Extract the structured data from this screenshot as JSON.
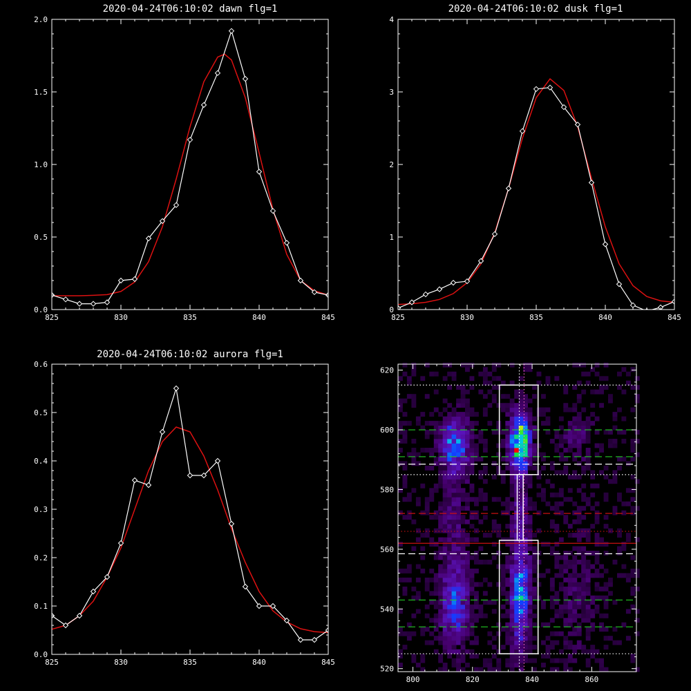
{
  "colors": {
    "background": "#000000",
    "data_line": "#ffffff",
    "fit_line": "#dd1111",
    "marker": "#ffffff"
  },
  "chart_data": [
    {
      "id": "dawn",
      "type": "line",
      "title": "2020-04-24T06:10:02 dawn flg=1",
      "xlim": [
        825,
        845
      ],
      "ylim": [
        0,
        2.0
      ],
      "xticks": [
        "825",
        "830",
        "835",
        "840",
        "845"
      ],
      "yticks": [
        "0.0",
        "0.5",
        "1.0",
        "1.5",
        "2.0"
      ],
      "series": [
        {
          "role": "data",
          "x": [
            825,
            826,
            827,
            828,
            829,
            830,
            831,
            832,
            833,
            834,
            835,
            836,
            837,
            838,
            839,
            840,
            841,
            842,
            843,
            844,
            845
          ],
          "y": [
            0.1,
            0.07,
            0.04,
            0.04,
            0.05,
            0.2,
            0.21,
            0.49,
            0.61,
            0.72,
            1.17,
            1.41,
            1.63,
            1.92,
            1.59,
            0.95,
            0.68,
            0.46,
            0.2,
            0.12,
            0.1
          ]
        },
        {
          "role": "fit",
          "x": [
            825,
            826,
            827,
            828,
            829,
            830,
            831,
            832,
            833,
            834,
            835,
            836,
            837,
            837.5,
            838,
            839,
            840,
            841,
            842,
            843,
            844,
            845
          ],
          "y": [
            0.095,
            0.095,
            0.095,
            0.098,
            0.103,
            0.125,
            0.19,
            0.33,
            0.57,
            0.9,
            1.26,
            1.57,
            1.74,
            1.76,
            1.72,
            1.46,
            1.08,
            0.69,
            0.38,
            0.2,
            0.13,
            0.1
          ]
        }
      ]
    },
    {
      "id": "dusk",
      "type": "line",
      "title": "2020-04-24T06:10:02 dusk flg=1",
      "xlim": [
        825,
        845
      ],
      "ylim": [
        0,
        4
      ],
      "xticks": [
        "825",
        "830",
        "835",
        "840",
        "845"
      ],
      "yticks": [
        "0",
        "1",
        "2",
        "3",
        "4"
      ],
      "series": [
        {
          "role": "data",
          "x": [
            825,
            826,
            827,
            828,
            829,
            830,
            831,
            832,
            833,
            834,
            835,
            836,
            837,
            838,
            839,
            840,
            841,
            842,
            843,
            844,
            845
          ],
          "y": [
            0.02,
            0.1,
            0.21,
            0.28,
            0.37,
            0.39,
            0.67,
            1.04,
            1.67,
            2.46,
            3.04,
            3.06,
            2.79,
            2.55,
            1.75,
            0.9,
            0.35,
            0.06,
            -0.02,
            0.03,
            0.11
          ]
        },
        {
          "role": "fit",
          "x": [
            825,
            826,
            827,
            828,
            829,
            830,
            831,
            832,
            833,
            834,
            835,
            836,
            837,
            838,
            839,
            840,
            841,
            842,
            843,
            844,
            845
          ],
          "y": [
            0.07,
            0.08,
            0.1,
            0.14,
            0.22,
            0.37,
            0.63,
            1.06,
            1.67,
            2.36,
            2.92,
            3.18,
            3.02,
            2.52,
            1.81,
            1.14,
            0.63,
            0.33,
            0.18,
            0.12,
            0.1
          ]
        }
      ]
    },
    {
      "id": "aurora",
      "type": "line",
      "title": "2020-04-24T06:10:02 aurora flg=1",
      "xlim": [
        825,
        845
      ],
      "ylim": [
        0,
        0.6
      ],
      "xticks": [
        "825",
        "830",
        "835",
        "840",
        "845"
      ],
      "yticks": [
        "0.0",
        "0.1",
        "0.2",
        "0.3",
        "0.4",
        "0.5",
        "0.6"
      ],
      "series": [
        {
          "role": "data",
          "x": [
            825,
            826,
            827,
            828,
            829,
            830,
            831,
            832,
            833,
            834,
            835,
            836,
            837,
            838,
            839,
            840,
            841,
            842,
            843,
            844,
            845
          ],
          "y": [
            0.08,
            0.06,
            0.08,
            0.13,
            0.16,
            0.23,
            0.36,
            0.35,
            0.46,
            0.55,
            0.37,
            0.37,
            0.4,
            0.27,
            0.14,
            0.1,
            0.1,
            0.07,
            0.03,
            0.03,
            0.05
          ]
        },
        {
          "role": "fit",
          "x": [
            825,
            826,
            827,
            828,
            829,
            830,
            831,
            832,
            833,
            834,
            835,
            836,
            837,
            838,
            839,
            840,
            841,
            842,
            843,
            844,
            845
          ],
          "y": [
            0.052,
            0.06,
            0.08,
            0.11,
            0.16,
            0.22,
            0.3,
            0.38,
            0.44,
            0.47,
            0.46,
            0.41,
            0.34,
            0.26,
            0.19,
            0.13,
            0.09,
            0.067,
            0.053,
            0.047,
            0.045
          ]
        }
      ]
    },
    {
      "id": "spectrogram",
      "type": "heatmap",
      "xlim": [
        795,
        875
      ],
      "ylim": [
        519,
        622
      ],
      "xticks": [
        "800",
        "820",
        "840",
        "860"
      ],
      "yticks": [
        "520",
        "540",
        "560",
        "580",
        "600",
        "620"
      ],
      "boxes": [
        {
          "x0": 829,
          "x1": 842,
          "y0": 585,
          "y1": 615
        },
        {
          "x0": 829,
          "x1": 842,
          "y0": 525,
          "y1": 563
        }
      ],
      "connector": {
        "x0": 835,
        "x1": 837,
        "y0": 563,
        "y1": 585
      },
      "hlines": [
        {
          "y": 615,
          "color": "#ffffff",
          "style": "dotted"
        },
        {
          "y": 600,
          "color": "#22cc22",
          "style": "dashed"
        },
        {
          "y": 591,
          "color": "#22cc22",
          "style": "dashed"
        },
        {
          "y": 588.5,
          "color": "#ffffff",
          "style": "dashed"
        },
        {
          "y": 585,
          "color": "#ffffff",
          "style": "dotted"
        },
        {
          "y": 572,
          "color": "#cc1111",
          "style": "dashed"
        },
        {
          "y": 566,
          "color": "#cc1111",
          "style": "dotted"
        },
        {
          "y": 562,
          "color": "#cc1111",
          "style": "solid"
        },
        {
          "y": 558.5,
          "color": "#ffffff",
          "style": "dashed"
        },
        {
          "y": 543,
          "color": "#22cc22",
          "style": "dashed"
        },
        {
          "y": 534,
          "color": "#22cc22",
          "style": "dashed"
        },
        {
          "y": 525,
          "color": "#ffffff",
          "style": "dotted"
        }
      ],
      "vlines": [
        {
          "x": 835.7,
          "color": "#ffffff",
          "style": "dotted"
        },
        {
          "x": 837.3,
          "color": "#ff66cc",
          "style": "dotted"
        }
      ],
      "blobs": [
        {
          "x": 836,
          "y": 596,
          "sx": 2.2,
          "sy": 6,
          "a": 1.0
        },
        {
          "x": 836,
          "y": 545,
          "sx": 2.2,
          "sy": 12,
          "a": 0.55
        },
        {
          "x": 814,
          "y": 595,
          "sx": 3.2,
          "sy": 6,
          "a": 0.5
        },
        {
          "x": 814,
          "y": 541,
          "sx": 3.2,
          "sy": 9,
          "a": 0.4
        },
        {
          "x": 836,
          "y": 574,
          "sx": 2.0,
          "sy": 9,
          "a": 0.18
        },
        {
          "x": 814,
          "y": 570,
          "sx": 3.5,
          "sy": 14,
          "a": 0.13
        },
        {
          "x": 855,
          "y": 597,
          "sx": 3.5,
          "sy": 5,
          "a": 0.13
        },
        {
          "x": 855,
          "y": 545,
          "sx": 4.0,
          "sy": 14,
          "a": 0.1
        }
      ]
    }
  ]
}
